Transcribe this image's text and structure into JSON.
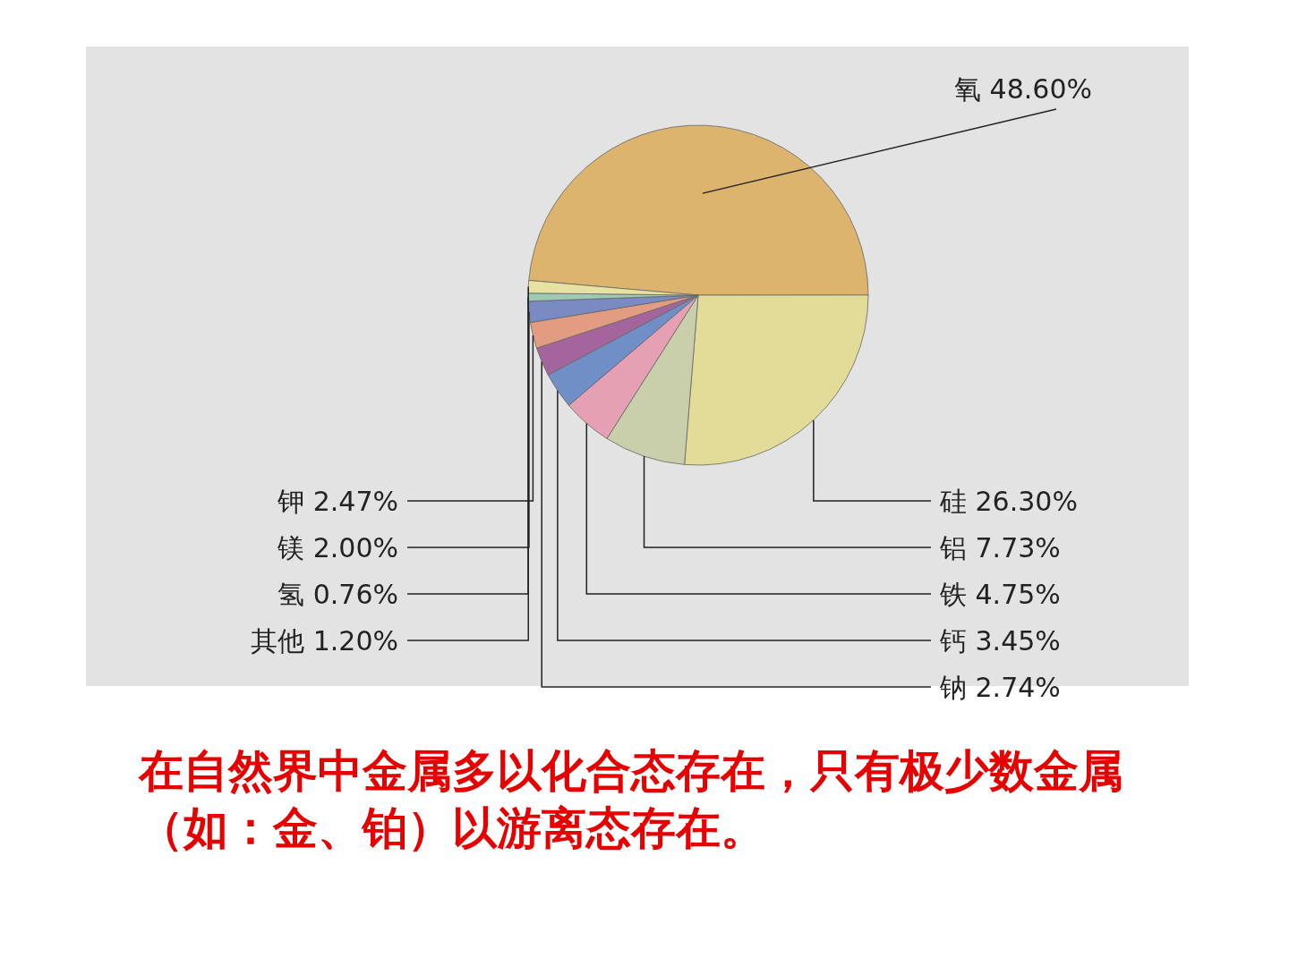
{
  "chart_data": {
    "type": "pie",
    "categories": [
      "氧",
      "硅",
      "铝",
      "铁",
      "钙",
      "钠",
      "钾",
      "镁",
      "氢",
      "其他"
    ],
    "values": [
      48.6,
      26.3,
      7.73,
      4.75,
      3.45,
      2.74,
      2.47,
      2.0,
      0.76,
      1.2
    ],
    "value_labels": [
      "48.60%",
      "26.30%",
      "7.73%",
      "4.75%",
      "3.45%",
      "2.74%",
      "2.47%",
      "2.00%",
      "0.76%",
      "1.20%"
    ],
    "colors": [
      "#dcb46e",
      "#e2dc98",
      "#c9cfaa",
      "#e6a0b4",
      "#6f8fc6",
      "#a4649c",
      "#e29c82",
      "#7a8ac2",
      "#9fcab2",
      "#e8e2a2"
    ],
    "annotations": [
      "在自然界中金属多以化合态存在，只有极少数金属（如：金、铂）以游离态存在。"
    ]
  }
}
